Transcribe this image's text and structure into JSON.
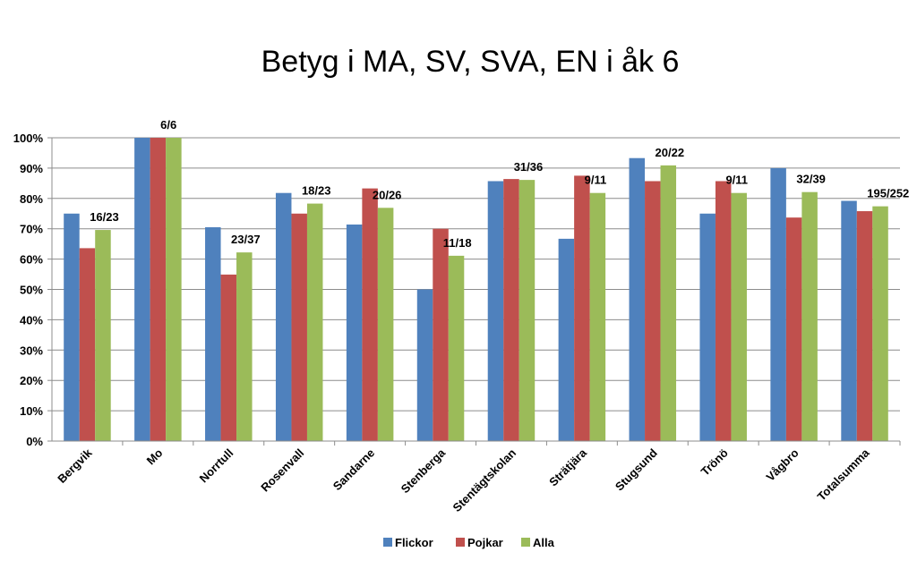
{
  "chart_data": {
    "type": "bar",
    "title": "Betyg i MA, SV, SVA, EN i åk 6",
    "categories": [
      "Bergvik",
      "Mo",
      "Norrtull",
      "Rosenvall",
      "Sandarne",
      "Stenberga",
      "Stentägtskolan",
      "Strätjära",
      "Stugsund",
      "Trönö",
      "Vågbro",
      "Totalsumma"
    ],
    "series": [
      {
        "name": "Flickor",
        "color": "#4F81BD",
        "values": [
          75,
          100,
          70.5,
          81.8,
          71.4,
          50,
          85.7,
          66.7,
          93.3,
          75,
          90,
          79.2
        ]
      },
      {
        "name": "Pojkar",
        "color": "#C0504D",
        "values": [
          63.6,
          100,
          54.9,
          75,
          83.3,
          70,
          86.4,
          87.5,
          85.7,
          85.7,
          73.7,
          75.8
        ]
      },
      {
        "name": "Alla",
        "color": "#9BBB59",
        "values": [
          69.6,
          100,
          62.2,
          78.3,
          76.9,
          61.1,
          86.1,
          81.8,
          90.9,
          81.8,
          82.1,
          77.4
        ]
      }
    ],
    "data_labels": [
      "16/23",
      "6/6",
      "23/37",
      "18/23",
      "20/26",
      "11/18",
      "31/36",
      "9/11",
      "20/22",
      "9/11",
      "32/39",
      "195/252"
    ],
    "y_ticks": [
      "0%",
      "10%",
      "20%",
      "30%",
      "40%",
      "50%",
      "60%",
      "70%",
      "80%",
      "90%",
      "100%"
    ],
    "ylim": [
      0,
      100
    ],
    "grid": true,
    "legend_position": "bottom",
    "xlabel": "",
    "ylabel": ""
  }
}
